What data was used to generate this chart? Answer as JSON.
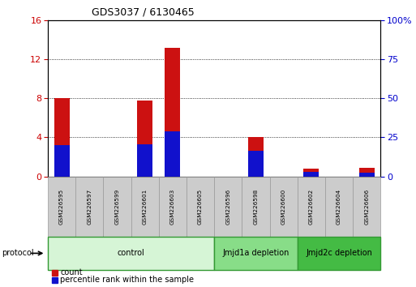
{
  "title": "GDS3037 / 6130465",
  "samples": [
    "GSM226595",
    "GSM226597",
    "GSM226599",
    "GSM226601",
    "GSM226603",
    "GSM226605",
    "GSM226596",
    "GSM226598",
    "GSM226600",
    "GSM226602",
    "GSM226604",
    "GSM226606"
  ],
  "count_values": [
    8.0,
    0.0,
    0.0,
    7.8,
    13.2,
    0.0,
    0.0,
    4.0,
    0.0,
    0.8,
    0.0,
    0.9
  ],
  "percentile_values": [
    20.0,
    0.0,
    0.0,
    20.6,
    28.75,
    0.0,
    0.0,
    16.25,
    0.0,
    3.125,
    0.0,
    2.5
  ],
  "ylim_left": [
    0,
    16
  ],
  "ylim_right": [
    0,
    100
  ],
  "yticks_left": [
    0,
    4,
    8,
    12,
    16
  ],
  "yticks_right": [
    0,
    25,
    50,
    75,
    100
  ],
  "groups": [
    {
      "label": "control",
      "start": 0,
      "end": 6,
      "color": "#d6f5d6",
      "edge_color": "#339933"
    },
    {
      "label": "Jmjd1a depletion",
      "start": 6,
      "end": 9,
      "color": "#88dd88",
      "edge_color": "#339933"
    },
    {
      "label": "Jmjd2c depletion",
      "start": 9,
      "end": 12,
      "color": "#44bb44",
      "edge_color": "#339933"
    }
  ],
  "bar_width": 0.55,
  "count_color": "#cc1111",
  "percentile_color": "#1111cc",
  "bg_color": "#ffffff",
  "left_label_color": "#cc0000",
  "right_label_color": "#0000cc",
  "protocol_label": "protocol",
  "legend_count": "count",
  "legend_percentile": "percentile rank within the sample",
  "fig_width": 5.13,
  "fig_height": 3.54,
  "dpi": 100
}
